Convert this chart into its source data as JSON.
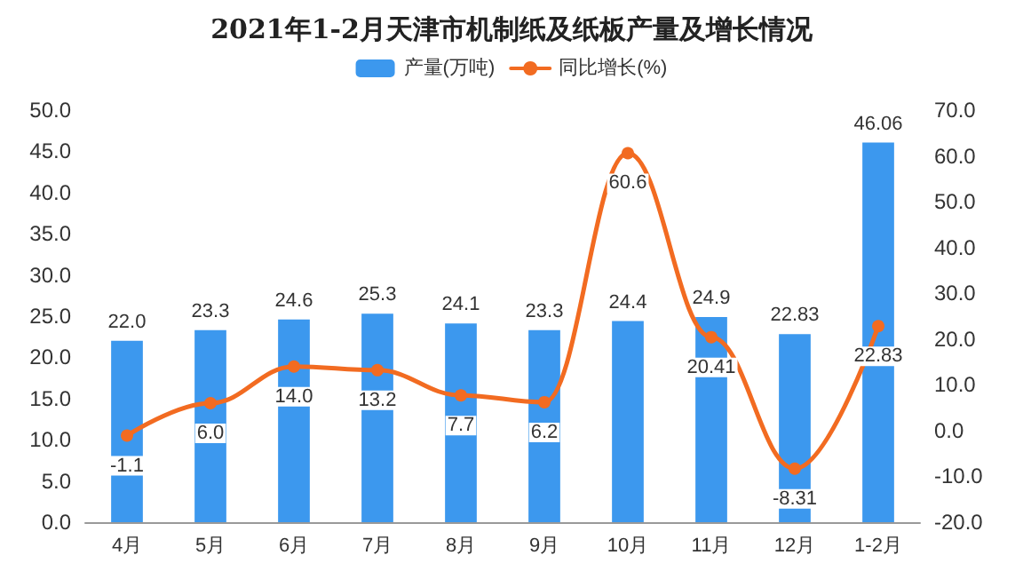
{
  "chart_data": {
    "type": "bar",
    "title": "2021年1-2月天津市机制纸及纸板产量及增长情况",
    "categories": [
      "4月",
      "5月",
      "6月",
      "7月",
      "8月",
      "9月",
      "10月",
      "11月",
      "12月",
      "1-2月"
    ],
    "series": [
      {
        "name": "产量(万吨)",
        "color": "#3c98ee",
        "values": [
          22.0,
          23.3,
          24.6,
          25.3,
          24.1,
          23.3,
          24.4,
          24.9,
          22.83,
          46.06
        ],
        "value_labels": [
          "22.0",
          "23.3",
          "24.6",
          "25.3",
          "24.1",
          "23.3",
          "24.4",
          "24.9",
          "22.83",
          "46.06"
        ]
      },
      {
        "name": "同比增长(%)",
        "type": "line",
        "axis": "y2",
        "color": "#f26b21",
        "values": [
          -1.1,
          6.0,
          14.0,
          13.2,
          7.7,
          6.2,
          60.6,
          20.41,
          -8.31,
          22.83
        ],
        "value_labels": [
          "-1.1",
          "6.0",
          "14.0",
          "13.2",
          "7.7",
          "6.2",
          "60.6",
          "20.41",
          "-8.31",
          "22.83"
        ]
      }
    ],
    "ylim": [
      0,
      50
    ],
    "yticks": [
      {
        "value": 0,
        "label": "0.0"
      },
      {
        "value": 5,
        "label": "5.0"
      },
      {
        "value": 10,
        "label": "10.0"
      },
      {
        "value": 15,
        "label": "15.0"
      },
      {
        "value": 20,
        "label": "20.0"
      },
      {
        "value": 25,
        "label": "25.0"
      },
      {
        "value": 30,
        "label": "30.0"
      },
      {
        "value": 35,
        "label": "35.0"
      },
      {
        "value": 40,
        "label": "40.0"
      },
      {
        "value": 45,
        "label": "45.0"
      },
      {
        "value": 50,
        "label": "50.0"
      }
    ],
    "y2lim": [
      -20,
      70
    ],
    "y2ticks": [
      {
        "value": -20,
        "label": "-20.0"
      },
      {
        "value": -10,
        "label": "-10.0"
      },
      {
        "value": 0,
        "label": "0.0"
      },
      {
        "value": 10,
        "label": "10.0"
      },
      {
        "value": 20,
        "label": "20.0"
      },
      {
        "value": 30,
        "label": "30.0"
      },
      {
        "value": 40,
        "label": "40.0"
      },
      {
        "value": 50,
        "label": "50.0"
      },
      {
        "value": 60,
        "label": "60.0"
      },
      {
        "value": 70,
        "label": "70.0"
      }
    ],
    "legend": "top",
    "marker": "circle",
    "line_style": "solid"
  }
}
